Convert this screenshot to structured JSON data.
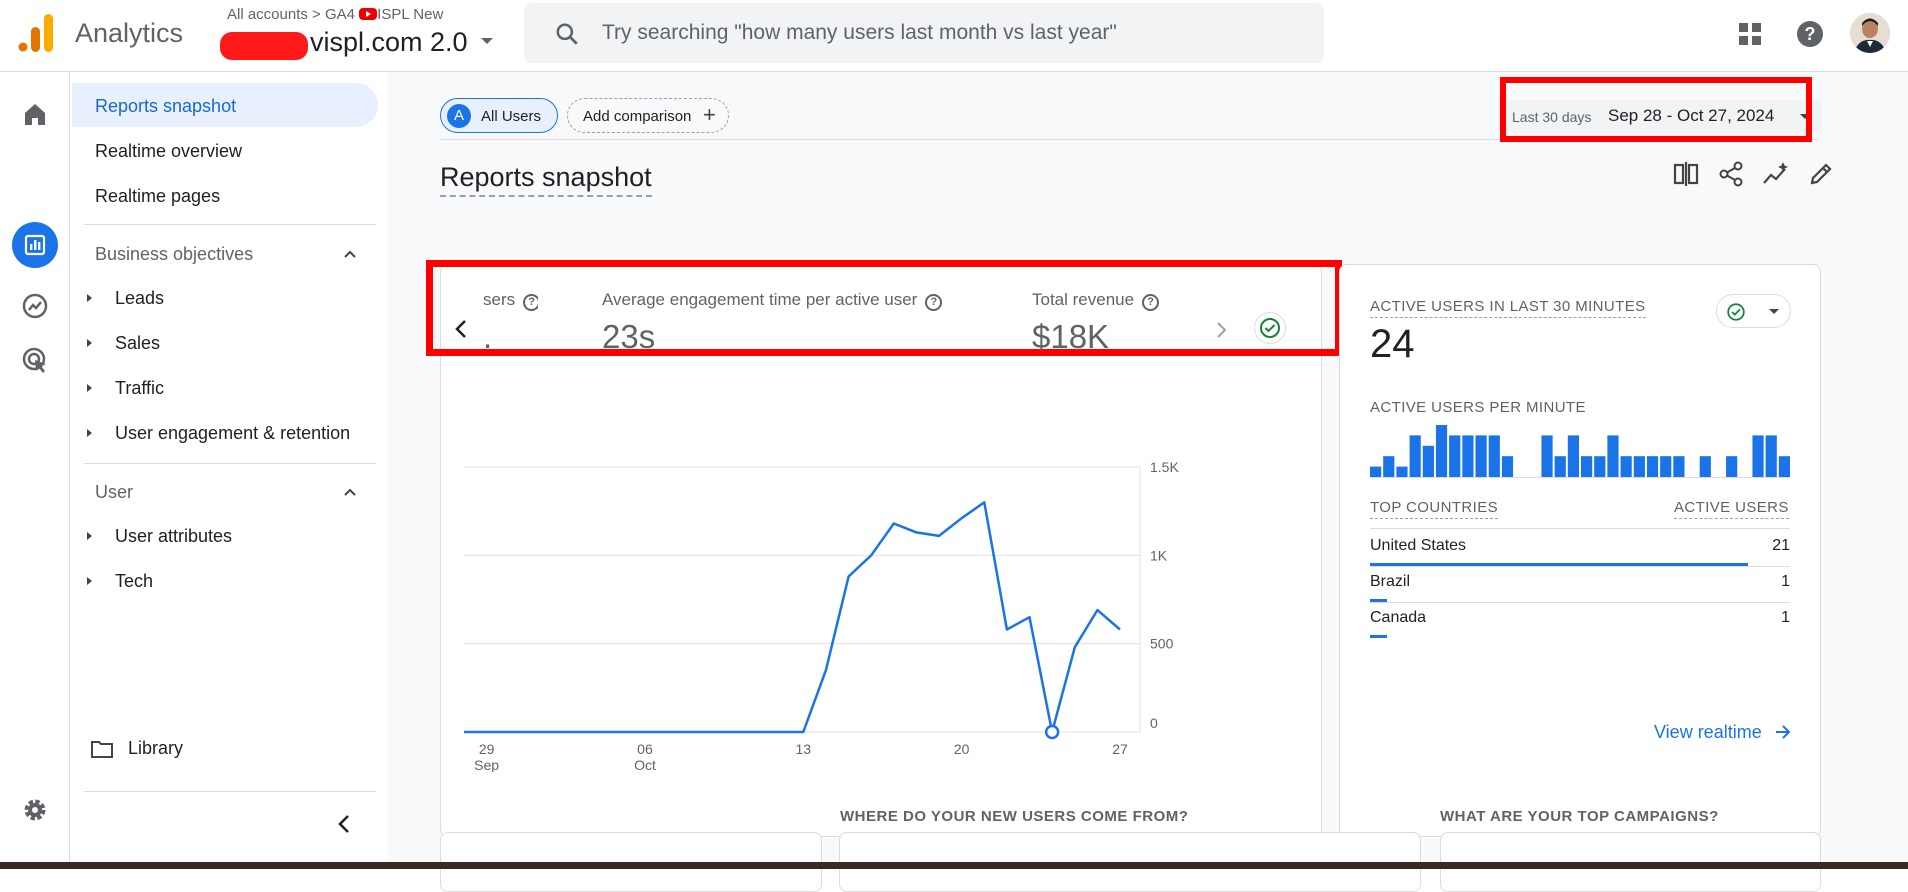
{
  "header": {
    "app_name": "Analytics",
    "breadcrumb_accounts": "All accounts",
    "breadcrumb_sep": ">",
    "breadcrumb_ga4": "GA4",
    "breadcrumb_account_suffix": "ISPL New",
    "property_name": "vispl.com 2.0",
    "search_placeholder": "Try searching \"how many users last month vs last year\""
  },
  "sidebar": {
    "items": [
      {
        "label": "Reports snapshot"
      },
      {
        "label": "Realtime overview"
      },
      {
        "label": "Realtime pages"
      }
    ],
    "section_business": "Business objectives",
    "business_items": [
      {
        "label": "Leads"
      },
      {
        "label": "Sales"
      },
      {
        "label": "Traffic"
      },
      {
        "label": "User engagement & retention"
      }
    ],
    "section_user": "User",
    "user_items": [
      {
        "label": "User attributes"
      },
      {
        "label": "Tech"
      }
    ],
    "library": "Library"
  },
  "toolbar": {
    "all_users_avatar": "A",
    "all_users": "All Users",
    "add_comparison": "Add comparison",
    "date_range_label": "Last 30 days",
    "date_range": "Sep 28 - Oct 27, 2024"
  },
  "page_title": "Reports snapshot",
  "kpis": {
    "partial_label": "sers",
    "partial_value": ".",
    "engagement_label": "Average engagement time per active user",
    "engagement_value": "23s",
    "revenue_label": "Total revenue",
    "revenue_value": "$18K"
  },
  "chart_data": {
    "type": "line",
    "x": [
      "Sep 28",
      "Sep 29",
      "Sep 30",
      "Oct 01",
      "Oct 02",
      "Oct 03",
      "Oct 04",
      "Oct 05",
      "Oct 06",
      "Oct 07",
      "Oct 08",
      "Oct 09",
      "Oct 10",
      "Oct 11",
      "Oct 12",
      "Oct 13",
      "Oct 14",
      "Oct 15",
      "Oct 16",
      "Oct 17",
      "Oct 18",
      "Oct 19",
      "Oct 20",
      "Oct 21",
      "Oct 22",
      "Oct 23",
      "Oct 24",
      "Oct 25",
      "Oct 26",
      "Oct 27"
    ],
    "series": [
      {
        "values": [
          0,
          0,
          0,
          0,
          0,
          0,
          0,
          0,
          0,
          0,
          0,
          0,
          0,
          0,
          0,
          0,
          350,
          880,
          1000,
          1180,
          1130,
          1110,
          1210,
          1300,
          580,
          650,
          0,
          480,
          690,
          580
        ]
      }
    ],
    "x_tick_labels": [
      {
        "day": "29",
        "month": "Sep"
      },
      {
        "day": "06",
        "month": "Oct"
      },
      {
        "day": "13",
        "month": ""
      },
      {
        "day": "20",
        "month": ""
      },
      {
        "day": "27",
        "month": ""
      }
    ],
    "y_tick_labels": [
      "0",
      "500",
      "1K",
      "1.5K"
    ],
    "ylim": [
      0,
      1500
    ],
    "highlight_point_index": 26,
    "color": "#1a73e8"
  },
  "realtime": {
    "title": "ACTIVE USERS IN LAST 30 MINUTES",
    "value": "24",
    "per_minute_title": "ACTIVE USERS PER MINUTE",
    "per_minute_bars": [
      1,
      2,
      1,
      4,
      3,
      5,
      4,
      4,
      4,
      4,
      2,
      0,
      0,
      4,
      2,
      4,
      2,
      2,
      4,
      2,
      2,
      2,
      2,
      2,
      0,
      2,
      0,
      2,
      0,
      4,
      4,
      2
    ],
    "col_countries": "TOP COUNTRIES",
    "col_users": "ACTIVE USERS",
    "countries": [
      {
        "name": "United States",
        "value": "21",
        "share": 0.9
      },
      {
        "name": "Brazil",
        "value": "1",
        "share": 0.04
      },
      {
        "name": "Canada",
        "value": "1",
        "share": 0.04
      }
    ],
    "view_link": "View realtime"
  },
  "bottom": {
    "new_users": "WHERE DO YOUR NEW USERS COME FROM?",
    "campaigns": "WHAT ARE YOUR TOP CAMPAIGNS?"
  },
  "colors": {
    "accent": "#1a73e8",
    "highlight": "#ff0000",
    "check": "#188038"
  }
}
